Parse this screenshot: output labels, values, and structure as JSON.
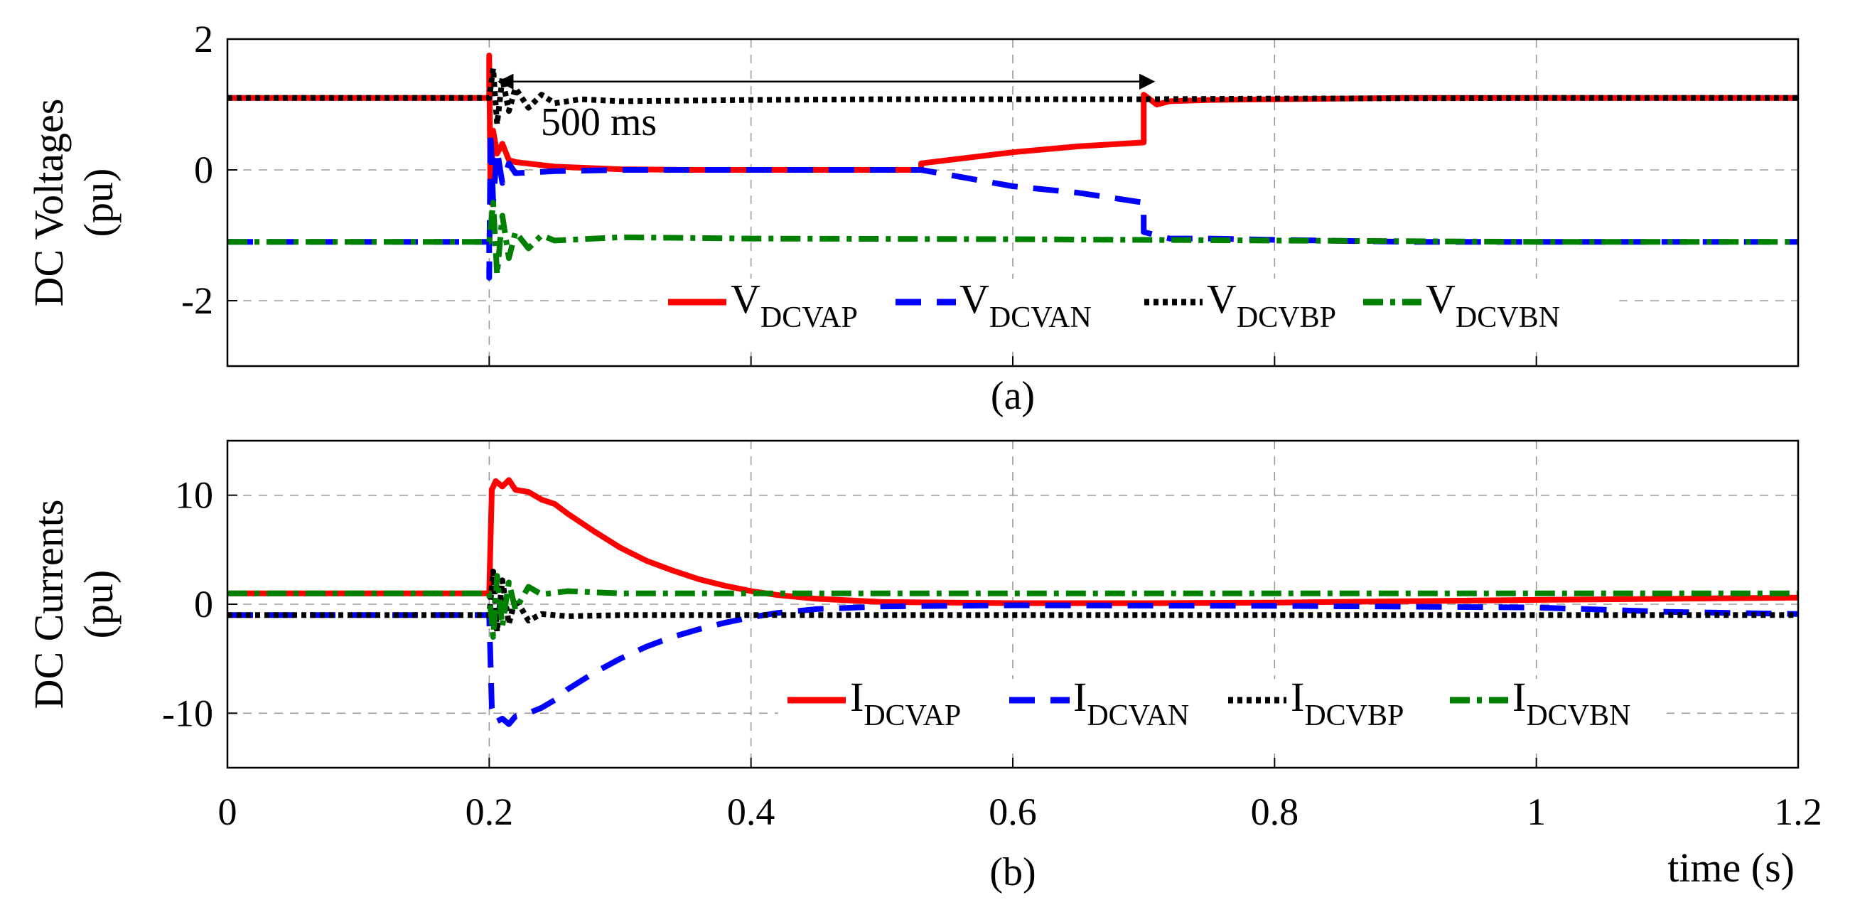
{
  "figure": {
    "xlabel": "time (s)",
    "x_ticks": [
      "0",
      "0.2",
      "0.4",
      "0.6",
      "0.8",
      "1",
      "1.2"
    ]
  },
  "chart_data": [
    {
      "type": "line",
      "panel_label": "(a)",
      "ylabel_line1": "DC Voltages",
      "ylabel_line2": "(pu)",
      "xlim": [
        0,
        1.2
      ],
      "ylim": [
        -3,
        2
      ],
      "y_ticks": [
        "2",
        "0",
        "-2"
      ],
      "grid": true,
      "legend_position": "bottom-center",
      "annotation": {
        "text": "500 ms",
        "from_x": 0.2,
        "to_x": 0.7,
        "y": 1.35
      },
      "series": [
        {
          "name": "V",
          "sub": "DCVAP",
          "color": "#ff0000",
          "style": "solid",
          "points": [
            [
              0,
              1.1
            ],
            [
              0.2,
              1.1
            ],
            [
              0.2,
              1.75
            ],
            [
              0.201,
              -0.5
            ],
            [
              0.203,
              0.6
            ],
            [
              0.206,
              0.25
            ],
            [
              0.21,
              0.4
            ],
            [
              0.215,
              0.15
            ],
            [
              0.22,
              0.12
            ],
            [
              0.25,
              0.05
            ],
            [
              0.3,
              0.01
            ],
            [
              0.35,
              0
            ],
            [
              0.4,
              0
            ],
            [
              0.5,
              0
            ],
            [
              0.53,
              0
            ],
            [
              0.53,
              0.1
            ],
            [
              0.6,
              0.27
            ],
            [
              0.65,
              0.36
            ],
            [
              0.7,
              0.42
            ],
            [
              0.7,
              1.15
            ],
            [
              0.71,
              1.0
            ],
            [
              0.72,
              1.05
            ],
            [
              0.75,
              1.07
            ],
            [
              0.8,
              1.08
            ],
            [
              0.9,
              1.1
            ],
            [
              1.0,
              1.1
            ],
            [
              1.2,
              1.1
            ]
          ]
        },
        {
          "name": "V",
          "sub": "DCVAN",
          "color": "#0000ff",
          "style": "dashed",
          "points": [
            [
              0,
              -1.1
            ],
            [
              0.2,
              -1.1
            ],
            [
              0.2,
              -1.65
            ],
            [
              0.201,
              0.6
            ],
            [
              0.203,
              -0.5
            ],
            [
              0.206,
              0.3
            ],
            [
              0.21,
              -0.2
            ],
            [
              0.215,
              0.1
            ],
            [
              0.22,
              -0.05
            ],
            [
              0.25,
              -0.02
            ],
            [
              0.3,
              0
            ],
            [
              0.53,
              0
            ],
            [
              0.6,
              -0.25
            ],
            [
              0.65,
              -0.35
            ],
            [
              0.7,
              -0.5
            ],
            [
              0.7,
              -0.95
            ],
            [
              0.72,
              -1.05
            ],
            [
              0.75,
              -1.05
            ],
            [
              0.8,
              -1.07
            ],
            [
              0.9,
              -1.1
            ],
            [
              1.2,
              -1.1
            ]
          ]
        },
        {
          "name": "V",
          "sub": "DCVBP",
          "color": "#000000",
          "style": "dotted",
          "points": [
            [
              0,
              1.1
            ],
            [
              0.2,
              1.1
            ],
            [
              0.203,
              1.55
            ],
            [
              0.206,
              0.7
            ],
            [
              0.21,
              1.4
            ],
            [
              0.215,
              0.9
            ],
            [
              0.22,
              1.25
            ],
            [
              0.23,
              0.95
            ],
            [
              0.24,
              1.15
            ],
            [
              0.25,
              1.02
            ],
            [
              0.27,
              1.08
            ],
            [
              0.3,
              1.05
            ],
            [
              0.4,
              1.07
            ],
            [
              0.5,
              1.08
            ],
            [
              0.6,
              1.08
            ],
            [
              0.7,
              1.08
            ],
            [
              0.8,
              1.09
            ],
            [
              1.0,
              1.1
            ],
            [
              1.2,
              1.1
            ]
          ]
        },
        {
          "name": "V",
          "sub": "DCVBN",
          "color": "#008000",
          "style": "dashdot",
          "points": [
            [
              0,
              -1.1
            ],
            [
              0.2,
              -1.1
            ],
            [
              0.203,
              -0.5
            ],
            [
              0.206,
              -1.6
            ],
            [
              0.21,
              -0.7
            ],
            [
              0.215,
              -1.35
            ],
            [
              0.22,
              -0.95
            ],
            [
              0.23,
              -1.2
            ],
            [
              0.24,
              -1.0
            ],
            [
              0.25,
              -1.08
            ],
            [
              0.3,
              -1.03
            ],
            [
              0.4,
              -1.05
            ],
            [
              0.6,
              -1.06
            ],
            [
              0.8,
              -1.08
            ],
            [
              1.0,
              -1.1
            ],
            [
              1.2,
              -1.1
            ]
          ]
        }
      ]
    },
    {
      "type": "line",
      "panel_label": "(b)",
      "ylabel_line1": "DC Currents",
      "ylabel_line2": "(pu)",
      "xlim": [
        0,
        1.2
      ],
      "ylim": [
        -15,
        15
      ],
      "y_ticks": [
        "10",
        "0",
        "-10"
      ],
      "grid": true,
      "legend_position": "bottom-center",
      "series": [
        {
          "name": "I",
          "sub": "DCVAP",
          "color": "#ff0000",
          "style": "solid",
          "points": [
            [
              0,
              1
            ],
            [
              0.2,
              1
            ],
            [
              0.202,
              10.5
            ],
            [
              0.205,
              11.3
            ],
            [
              0.21,
              10.8
            ],
            [
              0.215,
              11.4
            ],
            [
              0.22,
              10.5
            ],
            [
              0.23,
              10.3
            ],
            [
              0.24,
              9.6
            ],
            [
              0.25,
              9.2
            ],
            [
              0.26,
              8.3
            ],
            [
              0.28,
              6.7
            ],
            [
              0.3,
              5.2
            ],
            [
              0.32,
              4.0
            ],
            [
              0.34,
              3.1
            ],
            [
              0.36,
              2.3
            ],
            [
              0.38,
              1.7
            ],
            [
              0.4,
              1.2
            ],
            [
              0.42,
              0.85
            ],
            [
              0.45,
              0.5
            ],
            [
              0.5,
              0.2
            ],
            [
              0.6,
              0.1
            ],
            [
              0.7,
              0.1
            ],
            [
              0.8,
              0.15
            ],
            [
              1.0,
              0.4
            ],
            [
              1.2,
              0.6
            ]
          ]
        },
        {
          "name": "I",
          "sub": "DCVAN",
          "color": "#0000ff",
          "style": "dashed",
          "points": [
            [
              0,
              -1
            ],
            [
              0.2,
              -1
            ],
            [
              0.202,
              -9.5
            ],
            [
              0.205,
              -10.8
            ],
            [
              0.21,
              -10.5
            ],
            [
              0.215,
              -11.0
            ],
            [
              0.22,
              -10.3
            ],
            [
              0.23,
              -10.0
            ],
            [
              0.24,
              -9.5
            ],
            [
              0.25,
              -8.8
            ],
            [
              0.26,
              -7.8
            ],
            [
              0.28,
              -6.3
            ],
            [
              0.3,
              -5.0
            ],
            [
              0.32,
              -3.9
            ],
            [
              0.34,
              -3.0
            ],
            [
              0.36,
              -2.3
            ],
            [
              0.38,
              -1.7
            ],
            [
              0.4,
              -1.2
            ],
            [
              0.42,
              -0.8
            ],
            [
              0.45,
              -0.45
            ],
            [
              0.5,
              -0.2
            ],
            [
              0.6,
              -0.1
            ],
            [
              0.8,
              -0.15
            ],
            [
              1.0,
              -0.3
            ],
            [
              1.1,
              -0.7
            ],
            [
              1.2,
              -0.9
            ]
          ]
        },
        {
          "name": "I",
          "sub": "DCVBP",
          "color": "#000000",
          "style": "dotted",
          "points": [
            [
              0,
              -1
            ],
            [
              0.2,
              -1
            ],
            [
              0.203,
              3
            ],
            [
              0.206,
              -2.5
            ],
            [
              0.21,
              2.2
            ],
            [
              0.215,
              -1.8
            ],
            [
              0.22,
              0.5
            ],
            [
              0.23,
              -1.5
            ],
            [
              0.24,
              -0.9
            ],
            [
              0.26,
              -1.1
            ],
            [
              0.3,
              -1.0
            ],
            [
              0.5,
              -1.0
            ],
            [
              0.8,
              -1.0
            ],
            [
              1.2,
              -1.0
            ]
          ]
        },
        {
          "name": "I",
          "sub": "DCVBN",
          "color": "#008000",
          "style": "dashdot",
          "points": [
            [
              0,
              1
            ],
            [
              0.2,
              1
            ],
            [
              0.203,
              -3
            ],
            [
              0.206,
              2.6
            ],
            [
              0.21,
              -2.0
            ],
            [
              0.215,
              2.0
            ],
            [
              0.22,
              -0.5
            ],
            [
              0.23,
              1.6
            ],
            [
              0.24,
              0.9
            ],
            [
              0.26,
              1.2
            ],
            [
              0.3,
              1.0
            ],
            [
              0.5,
              1.0
            ],
            [
              0.8,
              1.0
            ],
            [
              1.2,
              1.0
            ]
          ]
        }
      ]
    }
  ]
}
